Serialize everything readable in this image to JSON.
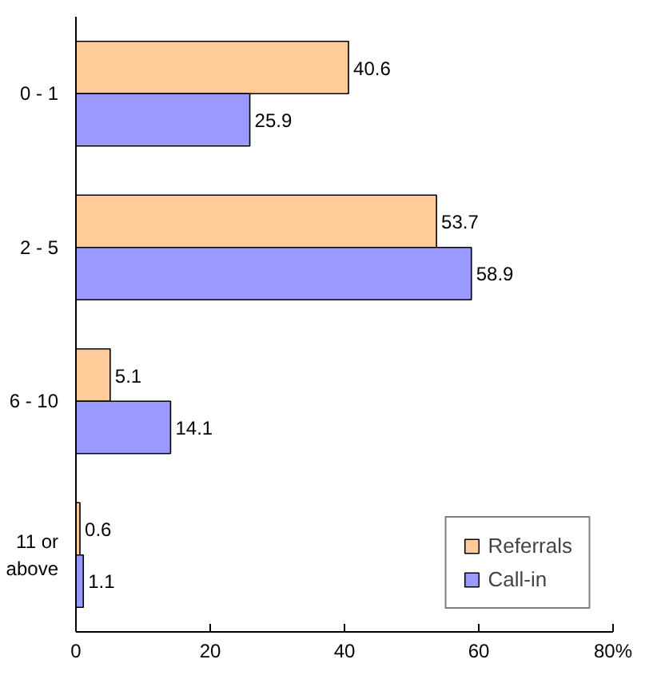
{
  "chart_data": {
    "type": "bar",
    "orientation": "horizontal",
    "categories": [
      "0 - 1",
      "2 - 5",
      "6 - 10",
      "11 or\nabove"
    ],
    "series": [
      {
        "name": "Referrals",
        "color": "#ffcc99",
        "values": [
          40.6,
          53.7,
          5.1,
          0.6
        ]
      },
      {
        "name": "Call-in",
        "color": "#9999ff",
        "values": [
          25.9,
          58.9,
          14.1,
          1.1
        ]
      }
    ],
    "xlim": [
      0,
      80
    ],
    "xticks": [
      0,
      20,
      40,
      60,
      {
        "value": 80,
        "label": "80%"
      }
    ],
    "data_labels": true,
    "grid": false,
    "legend": "bottom right"
  }
}
